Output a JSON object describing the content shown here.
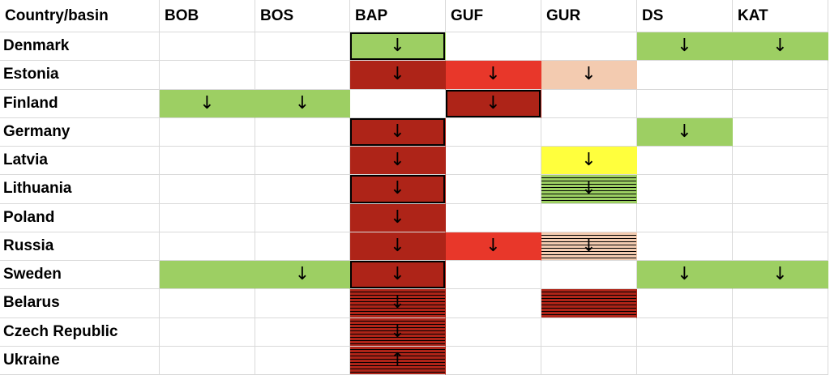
{
  "table": {
    "header": [
      "Country/basin",
      "BOB",
      "BOS",
      "BAP",
      "GUF",
      "GUR",
      "DS",
      "KAT"
    ],
    "rows": [
      {
        "label": "Denmark",
        "cells": [
          null,
          null,
          {
            "arrow": "↓",
            "color": "#9dcf63",
            "border": true
          },
          null,
          null,
          {
            "arrow": "↓",
            "color": "#9dcf63"
          },
          {
            "arrow": "↓",
            "color": "#9dcf63"
          }
        ]
      },
      {
        "label": "Estonia",
        "cells": [
          null,
          null,
          {
            "arrow": "↓",
            "color": "#ae2418"
          },
          {
            "arrow": "↓",
            "color": "#e8372a"
          },
          {
            "arrow": "↓",
            "color": "#f3cbb0"
          },
          null,
          null
        ]
      },
      {
        "label": "Finland",
        "cells": [
          {
            "arrow": "↓",
            "color": "#9dcf63"
          },
          {
            "arrow": "↓",
            "color": "#9dcf63"
          },
          null,
          {
            "arrow": "↓",
            "color": "#ae2418",
            "border": true
          },
          null,
          null,
          null
        ]
      },
      {
        "label": "Germany",
        "cells": [
          null,
          null,
          {
            "arrow": "↓",
            "color": "#ae2418",
            "border": true
          },
          null,
          null,
          {
            "arrow": "↓",
            "color": "#9dcf63"
          },
          null
        ]
      },
      {
        "label": "Latvia",
        "cells": [
          null,
          null,
          {
            "arrow": "↓",
            "color": "#ae2418"
          },
          null,
          {
            "arrow": "↓",
            "color": "#ffff3d"
          },
          null,
          null
        ]
      },
      {
        "label": "Lithuania",
        "cells": [
          null,
          null,
          {
            "arrow": "↓",
            "color": "#ae2418",
            "border": true
          },
          null,
          {
            "arrow": "↓",
            "color": "#9dcf63",
            "hatch": true
          },
          null,
          null
        ]
      },
      {
        "label": "Poland",
        "cells": [
          null,
          null,
          {
            "arrow": "↓",
            "color": "#ae2418"
          },
          null,
          null,
          null,
          null
        ]
      },
      {
        "label": "Russia",
        "cells": [
          null,
          null,
          {
            "arrow": "↓",
            "color": "#ae2418"
          },
          {
            "arrow": "↓",
            "color": "#e8372a"
          },
          {
            "arrow": "↓",
            "color": "#f3cbb0",
            "hatch": true
          },
          null,
          null
        ]
      },
      {
        "label": "Sweden",
        "cells": [
          {
            "color": "#9dcf63"
          },
          {
            "arrow": "↓",
            "color": "#9dcf63"
          },
          {
            "arrow": "↓",
            "color": "#ae2418",
            "border": true
          },
          null,
          null,
          {
            "arrow": "↓",
            "color": "#9dcf63"
          },
          {
            "arrow": "↓",
            "color": "#9dcf63"
          }
        ]
      },
      {
        "label": "Belarus",
        "cells": [
          null,
          null,
          {
            "arrow": "↓",
            "color": "#ae2418",
            "hatch": true
          },
          null,
          {
            "color": "#ae2418",
            "hatch": true
          },
          null,
          null
        ]
      },
      {
        "label": "Czech Republic",
        "cells": [
          null,
          null,
          {
            "arrow": "↓",
            "color": "#ae2418",
            "hatch": true
          },
          null,
          null,
          null,
          null
        ]
      },
      {
        "label": "Ukraine",
        "cells": [
          null,
          null,
          {
            "arrow": "↑",
            "color": "#ae2418",
            "hatch": true
          },
          null,
          null,
          null,
          null
        ]
      }
    ]
  }
}
